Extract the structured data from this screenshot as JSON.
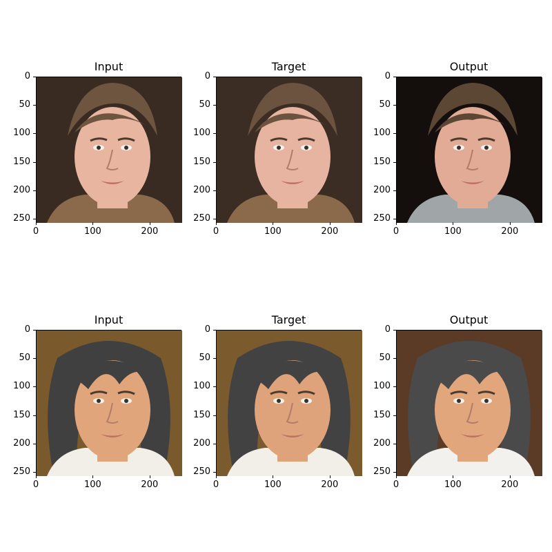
{
  "titles": [
    "Input",
    "Target",
    "Output"
  ],
  "axis": {
    "yticks": [
      "0",
      "50",
      "100",
      "150",
      "200",
      "250"
    ],
    "xticks": [
      "0",
      "100",
      "200"
    ]
  },
  "rows": [
    {
      "row_label": "row-1",
      "panels": [
        {
          "name": "input",
          "bg": "#3a2b22",
          "skin": "#e8b6a0",
          "hair": "#6e5540",
          "shirt": "#8a6a4a"
        },
        {
          "name": "target",
          "bg": "#3c2d24",
          "skin": "#e6b4a0",
          "hair": "#6b533f",
          "shirt": "#8a6a4a"
        },
        {
          "name": "output",
          "bg": "#140f0d",
          "skin": "#e1ab95",
          "hair": "#5c4634",
          "shirt": "#a0a5a8"
        }
      ]
    },
    {
      "row_label": "row-2",
      "panels": [
        {
          "name": "input",
          "bg": "#7a5a2c",
          "skin": "#e0a57a",
          "hair": "#404040",
          "shirt": "#f2efe9"
        },
        {
          "name": "target",
          "bg": "#7b5a2d",
          "skin": "#dea37a",
          "hair": "#424242",
          "shirt": "#f2efe9"
        },
        {
          "name": "output",
          "bg": "#5b3b25",
          "skin": "#e2a67d",
          "hair": "#4a4a4a",
          "shirt": "#f3f1ee"
        }
      ]
    }
  ]
}
